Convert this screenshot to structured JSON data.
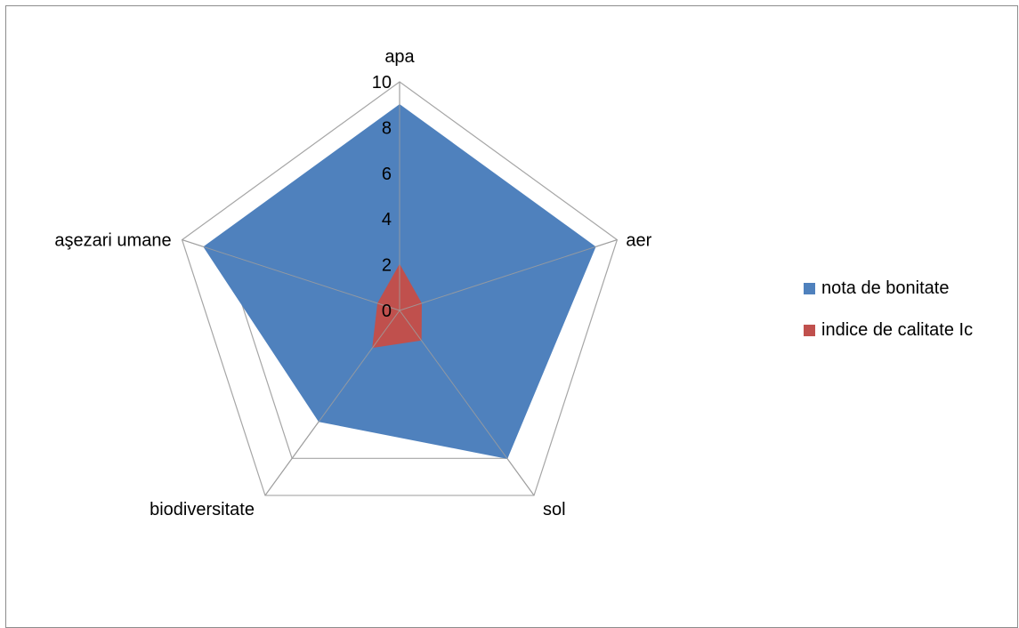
{
  "chart_data": {
    "type": "radar",
    "categories": [
      "apa",
      "aer",
      "sol",
      "biodiversitate",
      "aşezari umane"
    ],
    "series": [
      {
        "name": "nota de bonitate",
        "values": [
          9,
          9,
          8,
          6,
          9
        ],
        "color": "#4F81BD"
      },
      {
        "name": "indice de calitate Ic",
        "values": [
          2,
          1,
          1.6,
          2,
          1
        ],
        "color": "#C0504D"
      }
    ],
    "radial_axis": {
      "min": 0,
      "max": 10,
      "ticks": [
        "0",
        "2",
        "4",
        "6",
        "8",
        "10"
      ],
      "tick_values": [
        0,
        2,
        4,
        6,
        8,
        10
      ]
    },
    "grid": true,
    "legend_position": "right"
  }
}
